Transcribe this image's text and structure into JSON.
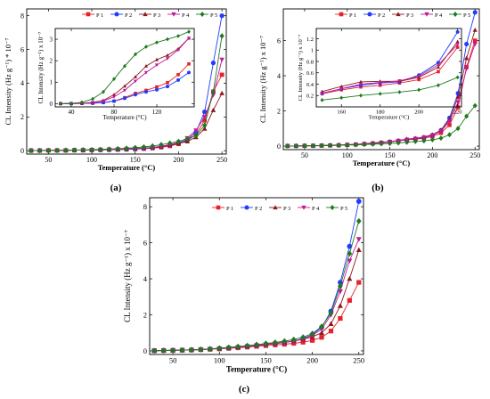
{
  "figure": {
    "panels": [
      "(a)",
      "(b)",
      "(c)"
    ]
  },
  "series_styles": [
    {
      "name": "P 1",
      "color": "#e8202a",
      "marker": "square"
    },
    {
      "name": "P 2",
      "color": "#1f3cff",
      "marker": "circle"
    },
    {
      "name": "P 3",
      "color": "#8b1a1a",
      "marker": "triangle"
    },
    {
      "name": "P 4",
      "color": "#c0189a",
      "marker": "triangle-down"
    },
    {
      "name": "P 5",
      "color": "#1f7a1f",
      "marker": "diamond"
    }
  ],
  "chart_data": [
    {
      "id": "a-main",
      "type": "line",
      "panel_label": "(a)",
      "xlabel": "Temperature (°C)",
      "ylabel": "CL Intensity (Hz g⁻¹) * 10⁻⁷",
      "xlim": [
        25,
        255
      ],
      "ylim": [
        -0.2,
        8.4
      ],
      "xticks": [
        50,
        100,
        150,
        200,
        250
      ],
      "yticks": [
        0,
        2,
        4,
        6,
        8
      ],
      "x": [
        30,
        40,
        50,
        60,
        70,
        80,
        90,
        100,
        110,
        120,
        130,
        140,
        150,
        160,
        170,
        180,
        190,
        200,
        210,
        220,
        230,
        240,
        250
      ],
      "series": [
        {
          "name": "P 1",
          "values": [
            0.01,
            0.01,
            0.02,
            0.02,
            0.02,
            0.03,
            0.03,
            0.04,
            0.05,
            0.06,
            0.07,
            0.08,
            0.1,
            0.12,
            0.15,
            0.2,
            0.28,
            0.4,
            0.6,
            0.95,
            1.8,
            3.5,
            4.5
          ]
        },
        {
          "name": "P 2",
          "values": [
            0.01,
            0.01,
            0.02,
            0.02,
            0.02,
            0.03,
            0.03,
            0.04,
            0.05,
            0.06,
            0.07,
            0.08,
            0.1,
            0.13,
            0.17,
            0.24,
            0.32,
            0.45,
            0.65,
            1.1,
            2.3,
            5.2,
            8.0
          ]
        },
        {
          "name": "P 3",
          "values": [
            0.01,
            0.01,
            0.02,
            0.02,
            0.02,
            0.03,
            0.04,
            0.05,
            0.06,
            0.07,
            0.08,
            0.1,
            0.12,
            0.15,
            0.19,
            0.25,
            0.32,
            0.42,
            0.55,
            0.8,
            1.3,
            2.4,
            3.4
          ]
        },
        {
          "name": "P 4",
          "values": [
            0.01,
            0.01,
            0.02,
            0.02,
            0.02,
            0.03,
            0.04,
            0.05,
            0.06,
            0.07,
            0.09,
            0.11,
            0.13,
            0.16,
            0.2,
            0.27,
            0.36,
            0.5,
            0.75,
            1.2,
            2.0,
            3.3,
            5.4
          ]
        },
        {
          "name": "P 5",
          "values": [
            0.01,
            0.01,
            0.02,
            0.02,
            0.03,
            0.04,
            0.05,
            0.06,
            0.08,
            0.1,
            0.12,
            0.15,
            0.18,
            0.22,
            0.28,
            0.36,
            0.45,
            0.55,
            0.7,
            0.9,
            1.5,
            3.5,
            6.8
          ]
        }
      ]
    },
    {
      "id": "a-inset",
      "type": "line",
      "ylabel": "CL Intensity (Hz g⁻¹) x 10⁻⁷",
      "xlabel": "Temperature (°C)",
      "xlim": [
        25,
        155
      ],
      "ylim": [
        -0.15,
        3.5
      ],
      "xticks": [
        40,
        80,
        120
      ],
      "yticks": [
        0,
        1,
        2,
        3
      ],
      "x": [
        30,
        40,
        50,
        60,
        70,
        80,
        90,
        100,
        110,
        120,
        130,
        140,
        150
      ],
      "series": [
        {
          "name": "P 1",
          "values": [
            0.0,
            0.0,
            0.01,
            0.02,
            0.05,
            0.12,
            0.28,
            0.48,
            0.62,
            0.78,
            0.98,
            1.35,
            1.85
          ]
        },
        {
          "name": "P 2",
          "values": [
            0.0,
            0.0,
            0.01,
            0.02,
            0.05,
            0.12,
            0.25,
            0.42,
            0.55,
            0.65,
            0.8,
            1.1,
            1.45
          ]
        },
        {
          "name": "P 3",
          "values": [
            0.0,
            0.01,
            0.02,
            0.06,
            0.15,
            0.42,
            0.82,
            1.25,
            1.75,
            2.05,
            2.25,
            2.55,
            3.05
          ]
        },
        {
          "name": "P 4",
          "values": [
            0.0,
            0.01,
            0.02,
            0.05,
            0.12,
            0.32,
            0.62,
            1.05,
            1.45,
            1.8,
            2.1,
            2.5,
            3.05
          ]
        },
        {
          "name": "P 5",
          "values": [
            0.0,
            0.01,
            0.06,
            0.22,
            0.55,
            1.15,
            1.75,
            2.3,
            2.65,
            2.85,
            3.0,
            3.15,
            3.35
          ]
        }
      ]
    },
    {
      "id": "b-main",
      "type": "line",
      "panel_label": "(b)",
      "xlabel": "Temperature (°C)",
      "ylabel": "CL Intensity (Hz g⁻¹) x 10⁻⁷",
      "xlim": [
        25,
        255
      ],
      "ylim": [
        -0.2,
        7.8
      ],
      "xticks": [
        50,
        100,
        150,
        200,
        250
      ],
      "yticks": [
        0,
        2,
        4,
        6
      ],
      "x": [
        30,
        40,
        50,
        60,
        70,
        80,
        90,
        100,
        110,
        120,
        130,
        140,
        150,
        160,
        170,
        180,
        190,
        200,
        210,
        220,
        230,
        240,
        250
      ],
      "series": [
        {
          "name": "P 1",
          "values": [
            0.01,
            0.01,
            0.02,
            0.02,
            0.03,
            0.04,
            0.05,
            0.07,
            0.09,
            0.12,
            0.15,
            0.19,
            0.24,
            0.3,
            0.35,
            0.4,
            0.45,
            0.55,
            0.75,
            1.2,
            2.2,
            4.5,
            6.0
          ]
        },
        {
          "name": "P 2",
          "values": [
            0.01,
            0.01,
            0.02,
            0.02,
            0.03,
            0.04,
            0.05,
            0.07,
            0.09,
            0.12,
            0.15,
            0.19,
            0.24,
            0.3,
            0.36,
            0.42,
            0.48,
            0.62,
            0.9,
            1.6,
            3.0,
            5.8,
            7.6
          ]
        },
        {
          "name": "P 3",
          "values": [
            0.01,
            0.01,
            0.02,
            0.03,
            0.04,
            0.05,
            0.07,
            0.09,
            0.11,
            0.14,
            0.18,
            0.22,
            0.26,
            0.32,
            0.4,
            0.45,
            0.52,
            0.65,
            0.9,
            1.5,
            2.8,
            5.0,
            6.6
          ]
        },
        {
          "name": "P 4",
          "values": [
            0.01,
            0.01,
            0.02,
            0.02,
            0.03,
            0.04,
            0.05,
            0.07,
            0.09,
            0.12,
            0.15,
            0.19,
            0.24,
            0.3,
            0.37,
            0.43,
            0.5,
            0.62,
            0.85,
            1.4,
            2.5,
            4.4,
            5.8
          ]
        },
        {
          "name": "P 5",
          "values": [
            0.01,
            0.01,
            0.02,
            0.02,
            0.03,
            0.04,
            0.05,
            0.06,
            0.07,
            0.09,
            0.11,
            0.13,
            0.15,
            0.18,
            0.22,
            0.26,
            0.3,
            0.36,
            0.45,
            0.65,
            1.0,
            1.7,
            2.3
          ]
        }
      ]
    },
    {
      "id": "b-inset",
      "type": "line",
      "ylabel": "CL Intensity (Hz g⁻¹) x 10⁻⁷",
      "xlabel": "Temperature (°C)",
      "xlim": [
        147,
        222
      ],
      "ylim": [
        0.0,
        1.38
      ],
      "xticks": [
        160,
        180,
        200,
        220
      ],
      "yticks": [
        0.2,
        0.4,
        0.6,
        0.8,
        1.0,
        1.2
      ],
      "x": [
        150,
        160,
        170,
        180,
        190,
        200,
        210,
        220
      ],
      "series": [
        {
          "name": "P 1",
          "values": [
            0.23,
            0.3,
            0.35,
            0.38,
            0.42,
            0.48,
            0.62,
            1.05
          ]
        },
        {
          "name": "P 2",
          "values": [
            0.24,
            0.32,
            0.38,
            0.42,
            0.44,
            0.56,
            0.78,
            1.32
          ]
        },
        {
          "name": "P 3",
          "values": [
            0.27,
            0.36,
            0.44,
            0.45,
            0.45,
            0.52,
            0.7,
            1.15
          ]
        },
        {
          "name": "P 4",
          "values": [
            0.24,
            0.32,
            0.4,
            0.43,
            0.46,
            0.54,
            0.74,
            1.1
          ]
        },
        {
          "name": "P 5",
          "values": [
            0.12,
            0.16,
            0.2,
            0.23,
            0.26,
            0.3,
            0.38,
            0.52
          ]
        }
      ]
    },
    {
      "id": "c-main",
      "type": "line",
      "panel_label": "(c)",
      "xlabel": "Temperature (°C)",
      "ylabel": "CL Intensity (Hz g⁻¹) x 10⁻⁷",
      "xlim": [
        25,
        255
      ],
      "ylim": [
        -0.2,
        8.5
      ],
      "xticks": [
        50,
        100,
        150,
        200,
        250
      ],
      "yticks": [
        0,
        2,
        4,
        6,
        8
      ],
      "x": [
        30,
        40,
        50,
        60,
        70,
        80,
        90,
        100,
        110,
        120,
        130,
        140,
        150,
        160,
        170,
        180,
        190,
        200,
        210,
        220,
        230,
        240,
        250
      ],
      "series": [
        {
          "name": "P 1",
          "values": [
            0.01,
            0.02,
            0.03,
            0.04,
            0.05,
            0.07,
            0.09,
            0.11,
            0.14,
            0.17,
            0.21,
            0.25,
            0.29,
            0.33,
            0.37,
            0.42,
            0.48,
            0.58,
            0.75,
            1.1,
            1.8,
            2.8,
            3.8
          ]
        },
        {
          "name": "P 2",
          "values": [
            0.01,
            0.02,
            0.03,
            0.04,
            0.05,
            0.07,
            0.1,
            0.13,
            0.16,
            0.2,
            0.25,
            0.3,
            0.35,
            0.4,
            0.46,
            0.55,
            0.68,
            0.9,
            1.3,
            2.2,
            3.8,
            5.8,
            8.3
          ]
        },
        {
          "name": "P 3",
          "values": [
            0.01,
            0.02,
            0.03,
            0.04,
            0.06,
            0.08,
            0.11,
            0.14,
            0.18,
            0.22,
            0.27,
            0.32,
            0.37,
            0.42,
            0.48,
            0.55,
            0.64,
            0.78,
            1.0,
            1.5,
            2.5,
            4.0,
            5.6
          ]
        },
        {
          "name": "P 4",
          "values": [
            0.01,
            0.02,
            0.03,
            0.04,
            0.05,
            0.07,
            0.1,
            0.13,
            0.16,
            0.2,
            0.25,
            0.3,
            0.35,
            0.4,
            0.46,
            0.54,
            0.66,
            0.86,
            1.2,
            2.0,
            3.3,
            5.0,
            6.2
          ]
        },
        {
          "name": "P 5",
          "values": [
            0.01,
            0.02,
            0.03,
            0.04,
            0.06,
            0.08,
            0.11,
            0.15,
            0.19,
            0.24,
            0.29,
            0.35,
            0.41,
            0.47,
            0.54,
            0.63,
            0.76,
            0.96,
            1.35,
            2.1,
            3.6,
            5.4,
            7.2
          ]
        }
      ]
    }
  ]
}
